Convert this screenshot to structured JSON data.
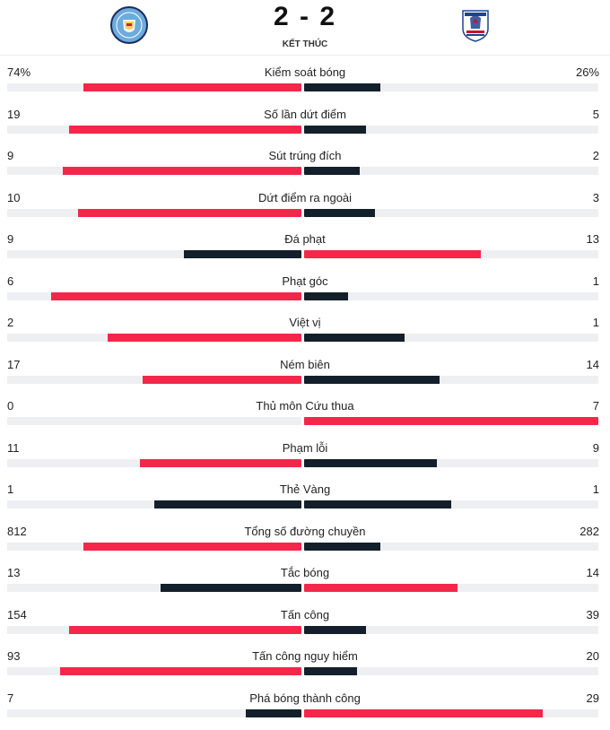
{
  "match": {
    "score": "2 - 2",
    "status": "KẾT THÚC",
    "home_logo_icon": "manchester-city-crest-icon",
    "away_logo_icon": "crystal-palace-crest-icon"
  },
  "colors": {
    "leader": "#f4274a",
    "other": "#13202b",
    "track": "#eeeff1"
  },
  "stats": [
    {
      "name": "Kiểm soát bóng",
      "home": "74%",
      "away": "26%",
      "home_frac": 0.74,
      "away_frac": 0.26
    },
    {
      "name": "Số lần dứt điểm",
      "home": "19",
      "away": "5",
      "home_frac": 0.79,
      "away_frac": 0.21
    },
    {
      "name": "Sút trúng đích",
      "home": "9",
      "away": "2",
      "home_frac": 0.81,
      "away_frac": 0.19
    },
    {
      "name": "Dứt điểm ra ngoài",
      "home": "10",
      "away": "3",
      "home_frac": 0.76,
      "away_frac": 0.24
    },
    {
      "name": "Đá phạt",
      "home": "9",
      "away": "13",
      "home_frac": 0.4,
      "away_frac": 0.6
    },
    {
      "name": "Phạt góc",
      "home": "6",
      "away": "1",
      "home_frac": 0.85,
      "away_frac": 0.15
    },
    {
      "name": "Việt vị",
      "home": "2",
      "away": "1",
      "home_frac": 0.66,
      "away_frac": 0.34
    },
    {
      "name": "Ném biên",
      "home": "17",
      "away": "14",
      "home_frac": 0.54,
      "away_frac": 0.46
    },
    {
      "name": "Thủ môn Cứu thua",
      "home": "0",
      "away": "7",
      "home_frac": 0.0,
      "away_frac": 1.0
    },
    {
      "name": "Phạm lỗi",
      "home": "11",
      "away": "9",
      "home_frac": 0.55,
      "away_frac": 0.45
    },
    {
      "name": "Thẻ Vàng",
      "home": "1",
      "away": "1",
      "home_frac": 0.5,
      "away_frac": 0.5
    },
    {
      "name": "Tổng số đường chuyền",
      "home": "812",
      "away": "282",
      "home_frac": 0.74,
      "away_frac": 0.26
    },
    {
      "name": "Tắc bóng",
      "home": "13",
      "away": "14",
      "home_frac": 0.48,
      "away_frac": 0.52
    },
    {
      "name": "Tấn công",
      "home": "154",
      "away": "39",
      "home_frac": 0.79,
      "away_frac": 0.21
    },
    {
      "name": "Tấn công nguy hiểm",
      "home": "93",
      "away": "20",
      "home_frac": 0.82,
      "away_frac": 0.18
    },
    {
      "name": "Phá bóng thành công",
      "home": "7",
      "away": "29",
      "home_frac": 0.19,
      "away_frac": 0.81
    }
  ]
}
